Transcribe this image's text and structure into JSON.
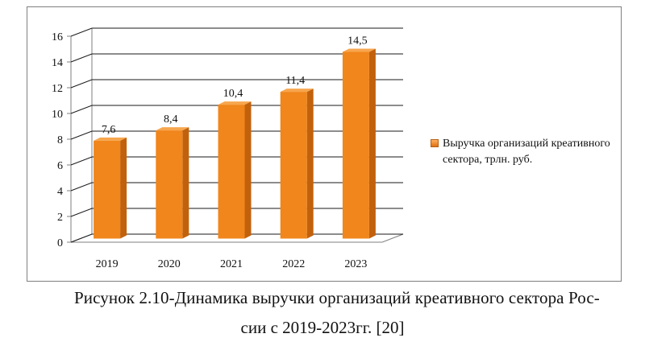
{
  "chart_data": {
    "type": "bar",
    "categories": [
      "2019",
      "2020",
      "2021",
      "2022",
      "2023"
    ],
    "series": [
      {
        "name": "Выручка организаций креативного сектора, трлн. руб.",
        "values": [
          7.6,
          8.4,
          10.4,
          11.4,
          14.5
        ]
      }
    ],
    "data_labels": [
      "7,6",
      "8,4",
      "10,4",
      "11,4",
      "14,5"
    ],
    "yticks": [
      "0",
      "2",
      "4",
      "6",
      "8",
      "10",
      "12",
      "14",
      "16"
    ],
    "ylim": [
      0,
      16
    ],
    "grid": true,
    "legend_position": "right",
    "style": "3d-column",
    "colors": {
      "bar_front": "#f0861c",
      "bar_side": "#c2610c",
      "bar_top": "#f7a64e",
      "grid": "#000000"
    }
  },
  "caption": {
    "line1": "Рисунок 2.10-Динамика выручки организаций креативного сектора Рос-",
    "line2": "сии с 2019-2023гг. [20]"
  }
}
